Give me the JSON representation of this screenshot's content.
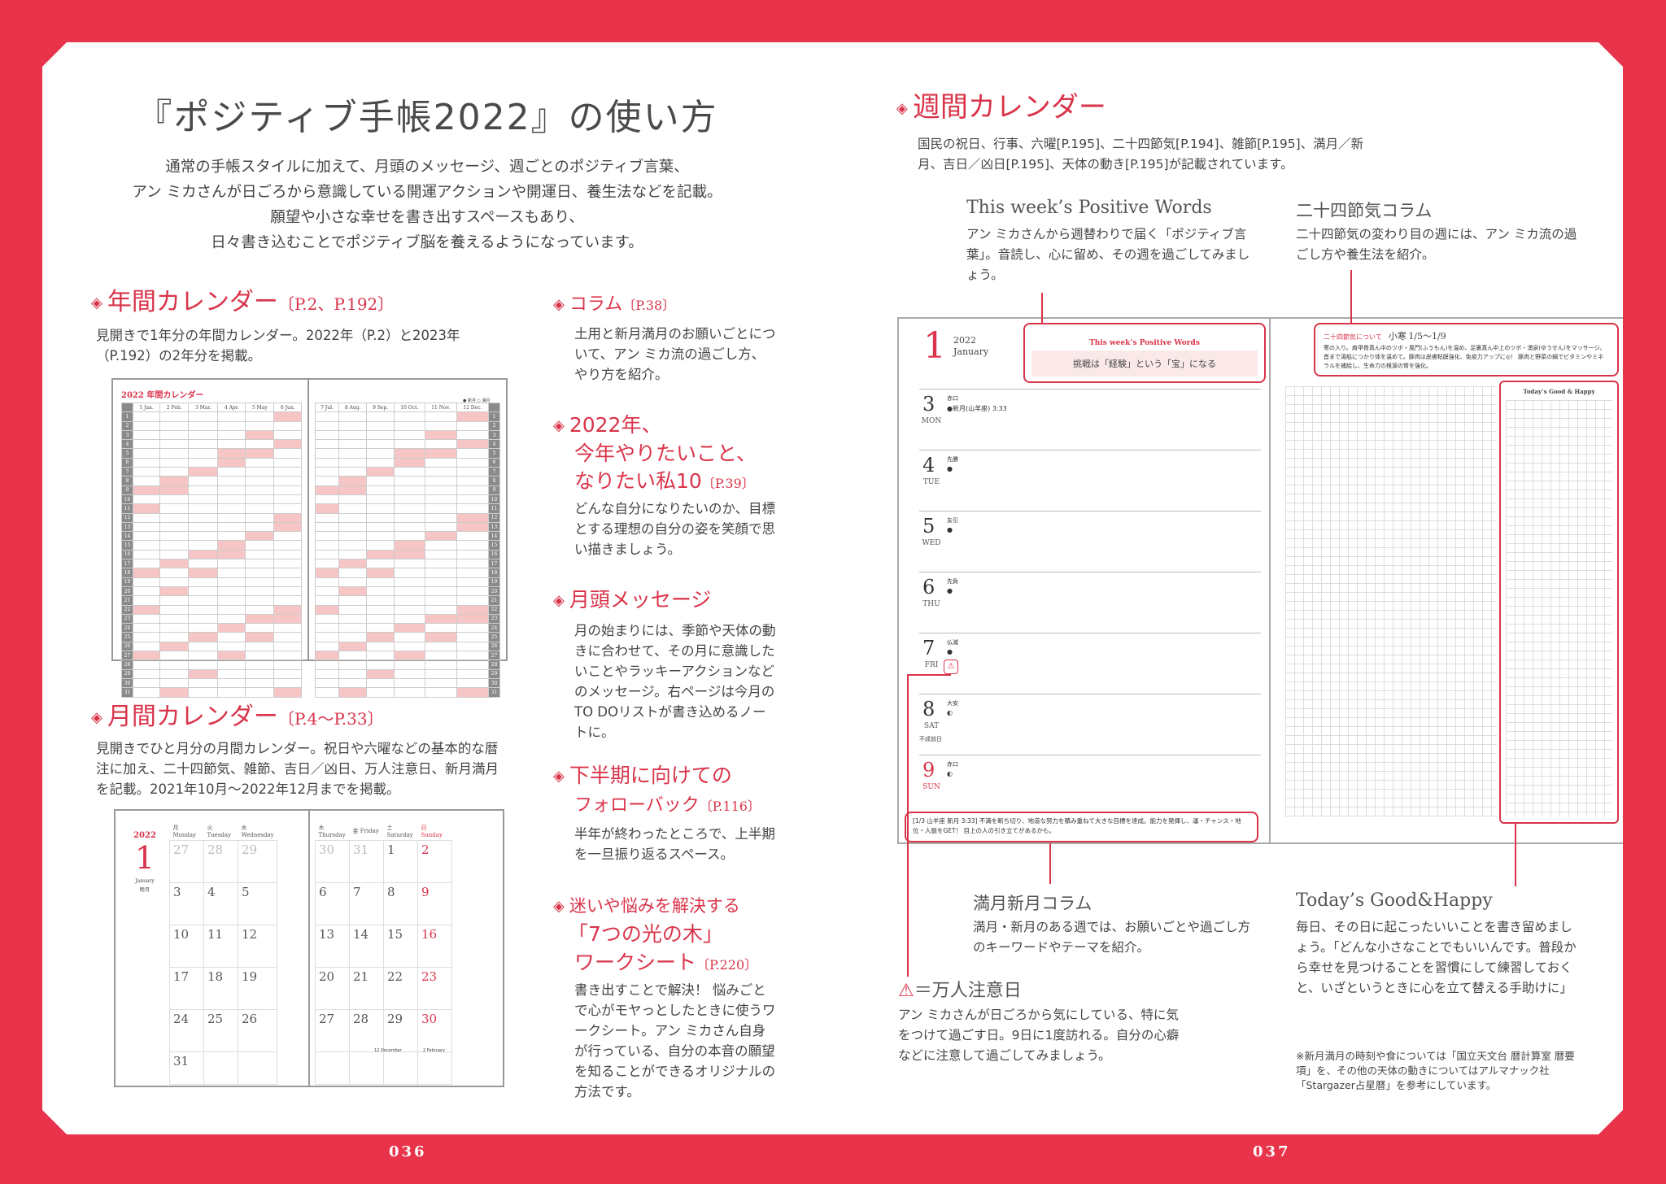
{
  "colors": {
    "accent": "#d9344a",
    "frame": "#e8334a",
    "highlight": "#f6c6c6"
  },
  "title": "『ポジティブ手帳2022』の使い方",
  "intro": [
    "通常の手帳スタイルに加えて、月頭のメッセージ、週ごとのポジティブ言葉、",
    "アン ミカさんが日ごろから意識している開運アクションや開運日、養生法などを記載。",
    "願望や小さな幸せを書き出すスペースもあり、",
    "日々書き込むことでポジティブ脳を養えるようになっています。"
  ],
  "sections": {
    "annual": {
      "title": "年間カレンダー",
      "page": "〔P.2、P.192〕",
      "body": "見開きで1年分の年間カレンダー。2022年（P.2）と2023年（P.192）の2年分を掲載。"
    },
    "monthly": {
      "title": "月間カレンダー",
      "page": "〔P.4〜P.33〕",
      "body": "見開きでひと月分の月間カレンダー。祝日や六曜などの基本的な暦注に加え、二十四節気、雑節、吉日／凶日、万人注意日、新月満月を記載。2021年10月〜2022年12月までを掲載。"
    },
    "column": {
      "title": "コラム",
      "page": "〔P.38〕",
      "body": "土用と新月満月のお願いごとについて、アン ミカ流の過ごし方、やり方を紹介。"
    },
    "goals": {
      "title1": "2022年、",
      "title2": "今年やりたいこと、",
      "title3": "なりたい私10",
      "page": "〔P.39〕",
      "body": "どんな自分になりたいのか、目標とする理想の自分の姿を笑顔で思い描きましょう。"
    },
    "month_msg": {
      "title": "月頭メッセージ",
      "body": "月の始まりには、季節や天体の動きに合わせて、その月に意識したいことやラッキーアクションなどのメッセージ。右ページは今月のTO DOリストが書き込めるノートに。"
    },
    "followback": {
      "title1": "下半期に向けての",
      "title2": "フォローバック",
      "page": "〔P.116〕",
      "body": "半年が終わったところで、上半期を一旦振り返るスペース。"
    },
    "worksheet": {
      "title1": "迷いや悩みを解決する",
      "title2": "「7つの光の木」",
      "title3": "ワークシート",
      "page": "〔P.220〕",
      "body": "書き出すことで解決！ 悩みごとで心がモヤっとしたときに使うワークシート。アン ミカさん自身が行っている、自分の本音の願望を知ることができるオリジナルの方法です。"
    },
    "weekly": {
      "title": "週間カレンダー",
      "body": "国民の祝日、行事、六曜[P.195]、二十四節気[P.194]、雑節[P.195]、満月／新月、吉日／凶日[P.195]、天体の動き[P.195]が記載されています。"
    }
  },
  "callouts": {
    "positive": {
      "title": "This week’s Positive Words",
      "body": "アン ミカさんから週替わりで届く「ポジティブ言葉」。音読し、心に留め、その週を過ごしてみましょう。"
    },
    "sekki": {
      "title": "二十四節気コラム",
      "body": "二十四節気の変わり目の週には、アン ミカ流の過ごし方や養生法を紹介。"
    },
    "moon": {
      "title": "満月新月コラム",
      "body": "満月・新月のある週では、お願いごとや過ごし方のキーワードやテーマを紹介。"
    },
    "happy": {
      "title": "Today’s Good&Happy",
      "body": "毎日、その日に起こったいいことを書き留めましょう。「どんな小さなことでもいいんです。普段から幸せを見つけることを習慣にして練習しておくと、いざというときに心を立て替える手助けに」"
    },
    "caution": {
      "title": "＝万人注意日",
      "body": "アン ミカさんが日ごろから気にしている、特に気をつけて過ごす日。9日に1度訪れる。自分の心癖などに注意して過ごしてみましょう。"
    },
    "note": "※新月満月の時刻や食については「国立天文台 暦計算室 暦要項」を、その他の天体の動きについてはアルマナック社「Stargazer占星暦」を参考にしています。"
  },
  "annual_thumb": {
    "title": "2022 年間カレンダー",
    "legend": "● 新月 ○ 満月",
    "months_left": [
      "1 Jan.",
      "2 Feb.",
      "3 Mar.",
      "4 Apr.",
      "5 May",
      "6 Jun."
    ],
    "months_right": [
      "7 Jul.",
      "8 Aug.",
      "9 Sep.",
      "10 Oct.",
      "11 Nov.",
      "12 Dec."
    ]
  },
  "monthly_thumb": {
    "year": "2022",
    "month": "1",
    "month_en": "January",
    "month_jp": "睦月",
    "days_left": [
      "月 Monday",
      "火 Tuesday",
      "水 Wednesday"
    ],
    "days_right": [
      "木 Thursday",
      "金 Friday",
      "土 Saturday",
      "日 Sunday"
    ],
    "weeks": [
      [
        "27",
        "28",
        "29",
        "30",
        "31",
        "1",
        "2"
      ],
      [
        "3",
        "4",
        "5",
        "6",
        "7",
        "8",
        "9"
      ],
      [
        "10",
        "11",
        "12",
        "13",
        "14",
        "15",
        "16"
      ],
      [
        "17",
        "18",
        "19",
        "20",
        "21",
        "22",
        "23"
      ],
      [
        "24",
        "25",
        "26",
        "27",
        "28",
        "29",
        "30"
      ],
      [
        "31",
        "",
        "",
        "",
        "",
        "",
        ""
      ]
    ],
    "mini_dec": "12 December",
    "mini_feb": "2 February"
  },
  "weekly_thumb": {
    "month": "1",
    "year": "2022",
    "month_en": "January",
    "pw_label": "This week’s Positive Words",
    "pw_text": "挑戦は「経験」という「宝」になる",
    "days": [
      {
        "n": "3",
        "w": "MON",
        "r": "赤口",
        "m": "●新月(山羊座) 3:33"
      },
      {
        "n": "4",
        "w": "TUE",
        "r": "先勝",
        "m": "●"
      },
      {
        "n": "5",
        "w": "WED",
        "r": "友引",
        "m": "●"
      },
      {
        "n": "6",
        "w": "THU",
        "r": "先負",
        "m": "●"
      },
      {
        "n": "7",
        "w": "FRI",
        "r": "仏滅",
        "m": "●"
      },
      {
        "n": "8",
        "w": "SAT",
        "r": "大安",
        "m": "◐",
        "extra": "不成就日"
      },
      {
        "n": "9",
        "w": "SUN",
        "r": "赤口",
        "m": "◐"
      }
    ],
    "moon_note": "[1/3 山羊座 新月 3:33] 不満を断ち切り、地道な努力を積み重ねて大きな目標を達成。能力を発揮し、運・チャンス・地位・人脈をGET！ 目上の人の引き立てがあるかも。",
    "sekki_label": "二十四節気について",
    "sekki_name": "小寒",
    "sekki_dates": "1/5〜1/9",
    "sekki_text": "寒の入り。肩甲骨真ん中のツボ・風門(ふうもん)を温め、足裏真ん中上のツボ・湧泉(ゆうせん)をマッサージ。首まで湯船につかり体を温めて。豚肉は皮膚粘膜強化、免疫力アップに◎！ 豚肉と野菜の鍋でビタミンやミネラルを補給し、生命力の根源の腎を強化。",
    "happy_label": "Today’s Good & Happy"
  },
  "page_numbers": {
    "left": "036",
    "right": "037"
  }
}
